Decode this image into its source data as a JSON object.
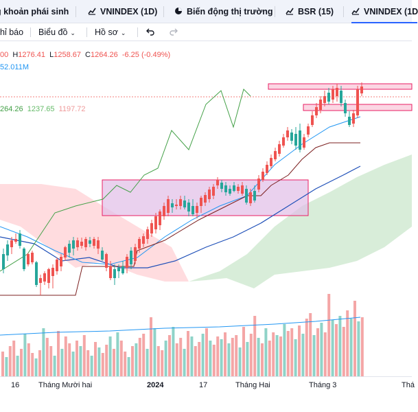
{
  "tabs": [
    {
      "label": "g khoản phái sinh",
      "icon": "none"
    },
    {
      "label": "VNINDEX (1D)",
      "icon": "chart-line-icon"
    },
    {
      "label": "Biến động thị trường",
      "icon": "pie-chart-icon"
    },
    {
      "label": "BSR (15)",
      "icon": "chart-line-icon"
    },
    {
      "label": "VNINDEX (1D",
      "icon": "chart-line-icon",
      "active": true
    }
  ],
  "toolbar": {
    "indicators_label": "hỉ báo",
    "chart_label": "Biểu đồ",
    "profile_label": "Hồ sơ",
    "undo_icon": "undo-icon",
    "redo_icon": "redo-icon"
  },
  "ohlc": {
    "open": "00",
    "h_key": "H",
    "high": "1276.41",
    "l_key": "L",
    "low": "1258.67",
    "c_key": "C",
    "close": "1264.26",
    "change": "-6.25",
    "change_pct": "(-0.49%)"
  },
  "volume_text": "52.011M",
  "ichimoku": {
    "v1": "264.26",
    "v2": "1237.65",
    "v3": "1197.72"
  },
  "time_axis": [
    {
      "label": "16",
      "bold": false
    },
    {
      "label": "Tháng Mười hai",
      "bold": false
    },
    {
      "label": "2024",
      "bold": true
    },
    {
      "label": "17",
      "bold": false
    },
    {
      "label": "Tháng Hai",
      "bold": false
    },
    {
      "label": "Tháng 3",
      "bold": false
    },
    {
      "label": "Thá",
      "bold": false
    }
  ],
  "colors": {
    "up": "#26a69a",
    "down": "#ef5350",
    "up_volume": "#8fd3c8",
    "down_volume": "#f4a6a6",
    "ema_fast": "#2196f3",
    "ema_slow": "#1e4fb8",
    "kijun": "#7b1f1f",
    "chikou": "#43a047",
    "cloud_bull": "#c8e6c9",
    "cloud_bear": "#ffcdd2",
    "zone_fill": "#e1bee7",
    "zone_stroke": "#e91e63",
    "accent": "#2962ff"
  }
}
